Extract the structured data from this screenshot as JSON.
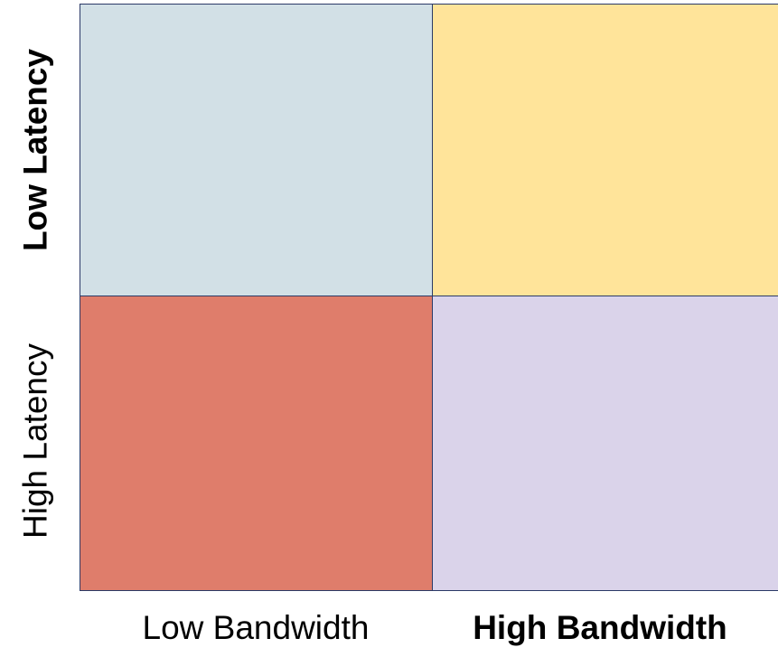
{
  "quadrants": {
    "low_latency_low_bandwidth": {
      "color": "#d2e0e6"
    },
    "low_latency_high_bandwidth": {
      "color": "#ffe49a"
    },
    "high_latency_low_bandwidth": {
      "color": "#df7d6b"
    },
    "high_latency_high_bandwidth": {
      "color": "#dad3ea"
    }
  },
  "axis": {
    "y_top_label": "Low Latency",
    "y_bottom_label": "High Latency",
    "x_left_label": "Low Bandwidth",
    "x_right_label": "High Bandwidth"
  },
  "colors": {
    "border": "#2b3a67"
  }
}
